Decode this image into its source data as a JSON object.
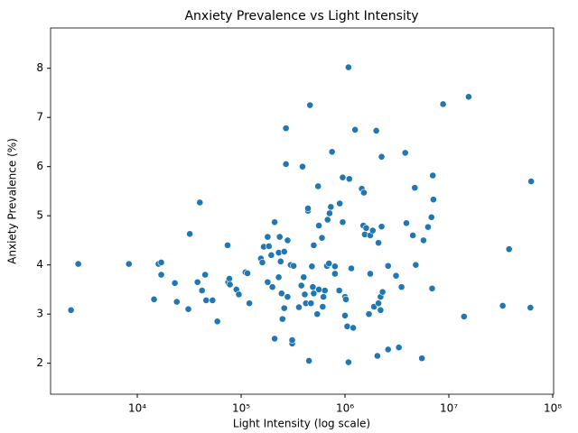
{
  "chart_data": {
    "type": "scatter",
    "title": "Anxiety Prevalence vs Light Intensity",
    "x_label": "Light Intensity (log scale)",
    "y_label": "Anxiety Prevalence (%)",
    "x_scale": "log",
    "color": "#1f77b4",
    "grid": false,
    "xlim": [
      1462,
      102000000
    ],
    "ylim": [
      1.37,
      8.82
    ],
    "xticks": [
      {
        "value": 10000,
        "label": "10⁴"
      },
      {
        "value": 100000,
        "label": "10⁵"
      },
      {
        "value": 1000000,
        "label": "10⁶"
      },
      {
        "value": 10000000,
        "label": "10⁷"
      },
      {
        "value": 100000000,
        "label": "10⁸"
      }
    ],
    "yticks": [
      2,
      3,
      4,
      5,
      6,
      7,
      8
    ],
    "x": [
      2300,
      2700,
      8300,
      14500,
      16000,
      17000,
      17000,
      23000,
      24000,
      31000,
      32000,
      38000,
      40000,
      42000,
      45000,
      46000,
      53000,
      59000,
      74000,
      75000,
      77000,
      78000,
      90000,
      95000,
      110000,
      115000,
      120000,
      155000,
      160000,
      165000,
      180000,
      185000,
      180000,
      195000,
      200000,
      210000,
      210000,
      230000,
      230000,
      235000,
      240000,
      245000,
      250000,
      260000,
      260000,
      270000,
      270000,
      280000,
      280000,
      300000,
      310000,
      310000,
      320000,
      360000,
      380000,
      390000,
      400000,
      410000,
      420000,
      440000,
      440000,
      450000,
      460000,
      470000,
      480000,
      490000,
      500000,
      500000,
      540000,
      550000,
      560000,
      560000,
      600000,
      610000,
      620000,
      640000,
      670000,
      680000,
      700000,
      710000,
      730000,
      750000,
      800000,
      800000,
      880000,
      890000,
      950000,
      950000,
      1000000,
      1000000,
      1020000,
      1050000,
      1080000,
      1100000,
      1080000,
      1150000,
      1200000,
      1250000,
      1450000,
      1500000,
      1520000,
      1550000,
      1600000,
      1700000,
      1750000,
      1750000,
      1850000,
      1900000,
      2000000,
      2050000,
      2100000,
      2100000,
      2200000,
      2200000,
      2250000,
      2250000,
      2300000,
      2600000,
      2600000,
      3100000,
      3300000,
      3500000,
      3800000,
      3900000,
      4500000,
      4700000,
      4800000,
      5500000,
      5700000,
      6300000,
      6800000,
      6900000,
      7000000,
      7100000,
      8800000,
      14000000,
      15500000,
      33000000,
      38000000,
      61000000,
      62000000
    ],
    "y": [
      3.08,
      4.02,
      4.02,
      3.3,
      4.02,
      4.05,
      3.8,
      3.63,
      3.25,
      3.1,
      4.63,
      3.65,
      5.27,
      3.48,
      3.8,
      3.28,
      3.28,
      2.85,
      4.4,
      3.65,
      3.72,
      3.6,
      3.5,
      3.4,
      3.85,
      3.83,
      3.22,
      4.13,
      4.05,
      4.37,
      4.57,
      4.38,
      3.65,
      4.2,
      3.55,
      4.87,
      2.5,
      4.25,
      3.75,
      4.57,
      4.07,
      3.42,
      2.9,
      4.27,
      3.12,
      6.78,
      6.05,
      4.5,
      3.35,
      4.0,
      2.4,
      2.47,
      3.98,
      3.14,
      3.58,
      6.0,
      3.75,
      3.4,
      3.22,
      5.1,
      5.15,
      2.05,
      7.25,
      3.22,
      3.97,
      3.55,
      4.4,
      3.42,
      3.0,
      5.6,
      3.5,
      4.8,
      4.55,
      3.15,
      3.35,
      3.48,
      3.98,
      4.92,
      4.03,
      5.05,
      5.18,
      6.3,
      3.97,
      3.82,
      3.48,
      5.25,
      5.78,
      4.87,
      3.35,
      2.97,
      3.3,
      2.75,
      8.02,
      5.75,
      2.02,
      3.93,
      2.72,
      6.75,
      5.55,
      4.8,
      5.47,
      4.62,
      4.75,
      3.0,
      3.82,
      4.6,
      4.7,
      3.15,
      6.73,
      2.15,
      3.22,
      4.45,
      3.35,
      3.08,
      4.78,
      6.2,
      3.45,
      2.28,
      3.98,
      3.78,
      2.32,
      3.55,
      6.28,
      4.85,
      4.6,
      5.57,
      4.0,
      2.1,
      4.5,
      4.77,
      4.97,
      3.52,
      5.82,
      5.33,
      7.27,
      2.95,
      7.42,
      3.17,
      4.32,
      3.13,
      5.7
    ]
  }
}
